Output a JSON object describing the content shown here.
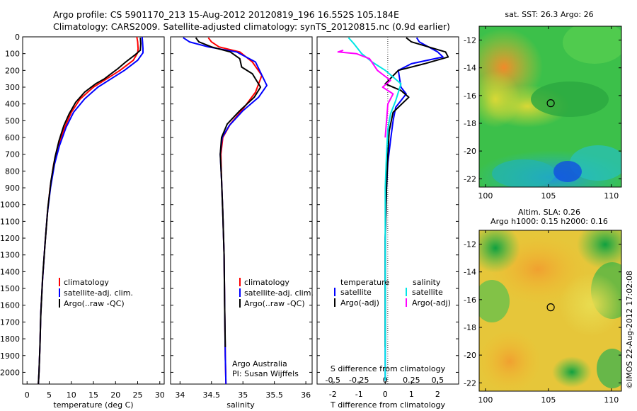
{
  "header": {
    "line1": "Argo profile: CS 5901170_213 15-Aug-2012 20120819_196 16.552S 105.184E",
    "line2": "Climatology: CARS2009. Satellite-adjusted climatology: synTS_20120815.nc (0.9d earlier)"
  },
  "colors": {
    "climatology": "#ff0000",
    "satellite": "#0000ff",
    "argo": "#000000",
    "sal_satellite": "#00e5e5",
    "sal_argo": "#ff00ff"
  },
  "chart_data": [
    {
      "type": "line",
      "name": "temperature",
      "xlabel": "temperature (deg C)",
      "ylabel": "",
      "xlim": [
        -1,
        31
      ],
      "ylim": [
        2070,
        0
      ],
      "xticks": [
        0,
        5,
        10,
        15,
        20,
        25,
        30
      ],
      "xtick_labels": [
        "0",
        "5",
        "10",
        "15",
        "20",
        "25",
        "30"
      ],
      "yticks": [
        0,
        100,
        200,
        300,
        400,
        500,
        600,
        700,
        800,
        900,
        1000,
        1100,
        1200,
        1300,
        1400,
        1500,
        1600,
        1700,
        1800,
        1900,
        2000
      ],
      "ytick_labels": [
        "0",
        "100",
        "200",
        "300",
        "400",
        "500",
        "600",
        "700",
        "800",
        "900",
        "1000",
        "1100",
        "1200",
        "1300",
        "1400",
        "1500",
        "1600",
        "1700",
        "1800",
        "1900",
        "2000"
      ],
      "legend": [
        "climatology",
        "satellite-adj. clim.",
        "Argo(..raw -QC)"
      ],
      "series": [
        {
          "name": "climatology",
          "color": "#ff0000",
          "x": [
            24.8,
            25,
            25.1,
            25,
            24,
            21,
            18,
            15,
            12,
            10,
            8.5,
            7,
            6,
            5.2,
            4.6,
            4,
            3.5,
            3.1,
            2.9,
            2.7,
            2.55
          ],
          "y": [
            0,
            30,
            70,
            95,
            140,
            200,
            250,
            300,
            370,
            450,
            540,
            650,
            760,
            900,
            1050,
            1250,
            1450,
            1650,
            1850,
            2000,
            2070
          ]
        },
        {
          "name": "satellite-adj. clim.",
          "color": "#0000ff",
          "x": [
            26,
            26.1,
            26.2,
            26.2,
            25,
            22,
            19,
            16,
            13,
            10.5,
            8.8,
            7.3,
            6.2,
            5.3,
            4.6,
            4,
            3.5,
            3.1,
            2.9,
            2.7,
            2.55
          ],
          "y": [
            0,
            30,
            70,
            95,
            140,
            200,
            250,
            300,
            370,
            450,
            540,
            650,
            760,
            900,
            1050,
            1250,
            1450,
            1650,
            1850,
            2000,
            2070
          ]
        },
        {
          "name": "Argo(..raw -QC)",
          "color": "#000000",
          "x": [
            25.6,
            25.7,
            25.6,
            24.5,
            22.3,
            20.5,
            19.5,
            17.5,
            15.5,
            13,
            11,
            9.5,
            8.3,
            7.2,
            6.3,
            5.4,
            4.7,
            4.1,
            3.5,
            3.1,
            2.9,
            2.7,
            2.55
          ],
          "y": [
            5,
            40,
            80,
            105,
            150,
            190,
            210,
            250,
            280,
            330,
            390,
            460,
            530,
            620,
            720,
            860,
            1020,
            1220,
            1440,
            1660,
            1850,
            2000,
            2070
          ]
        }
      ],
      "annotations": []
    },
    {
      "type": "line",
      "name": "salinity",
      "xlabel": "salinity",
      "ylabel": "",
      "xlim": [
        33.85,
        36.1
      ],
      "ylim": [
        2070,
        0
      ],
      "xticks": [
        34,
        34.5,
        35,
        35.5,
        36
      ],
      "xtick_labels": [
        "34",
        "34.5",
        "35",
        "35.5",
        "36"
      ],
      "legend": [
        "climatology",
        "satellite-adj. clim.",
        "Argo(..raw -QC)"
      ],
      "series": [
        {
          "name": "climatology",
          "color": "#ff0000",
          "x": [
            34.45,
            34.5,
            34.62,
            34.95,
            35.15,
            35.3,
            35.2,
            35.0,
            34.8,
            34.68,
            34.65,
            34.66,
            34.68,
            34.7,
            34.71,
            34.72,
            34.73
          ],
          "y": [
            5,
            30,
            60,
            90,
            150,
            230,
            330,
            430,
            520,
            600,
            700,
            850,
            1050,
            1300,
            1600,
            1900,
            2070
          ]
        },
        {
          "name": "satellite-adj. clim.",
          "color": "#0000ff",
          "x": [
            34.05,
            34.15,
            34.45,
            34.9,
            35.2,
            35.38,
            35.25,
            35.0,
            34.78,
            34.67,
            34.64,
            34.66,
            34.68,
            34.7,
            34.71,
            34.72,
            34.73
          ],
          "y": [
            5,
            30,
            60,
            90,
            150,
            290,
            360,
            440,
            530,
            600,
            700,
            850,
            1050,
            1300,
            1600,
            1900,
            2070
          ]
        },
        {
          "name": "Argo(..raw -QC)",
          "color": "#000000",
          "x": [
            34.25,
            34.3,
            34.5,
            34.8,
            34.95,
            34.98,
            35.15,
            35.28,
            35.18,
            34.95,
            34.75,
            34.66,
            34.64,
            34.66,
            34.68,
            34.7,
            34.71,
            34.72
          ],
          "y": [
            5,
            30,
            60,
            90,
            130,
            180,
            220,
            300,
            360,
            440,
            520,
            600,
            700,
            850,
            1050,
            1300,
            1600,
            1850
          ]
        }
      ],
      "annotations": [
        "Argo Australia",
        "PI: Susan Wijffels"
      ]
    },
    {
      "type": "line",
      "name": "difference",
      "xlabel": "T difference from climatology",
      "xlabel_top": "S difference from climatology",
      "xlim": [
        -2.6,
        2.8
      ],
      "ylim": [
        2070,
        0
      ],
      "xticks": [
        -2,
        -1,
        0,
        1,
        2
      ],
      "xtick_labels": [
        "-2",
        "-1",
        "0",
        "1",
        "2"
      ],
      "xticks_s": [
        -0.5,
        -0.25,
        0,
        0.25,
        0.5
      ],
      "xtick_labels_s": [
        "-0.5",
        "-0.25",
        "0",
        "0.25",
        "0.5"
      ],
      "legend_temperature_title": "temperature",
      "legend_salinity_title": "salinity",
      "legend": [
        "satellite",
        "Argo(-adj)",
        "satellite",
        "Argo(-adj)"
      ],
      "series": [
        {
          "name": "T satellite",
          "color": "#0000ff",
          "x": [
            1.2,
            1.3,
            2.0,
            2.2,
            1.0,
            0.5,
            0.6,
            0.8,
            0.4,
            0.3,
            0.2,
            0.1,
            0.05,
            0.0,
            0.0,
            0.0
          ],
          "y": [
            5,
            30,
            90,
            120,
            160,
            200,
            300,
            340,
            420,
            500,
            620,
            750,
            900,
            1200,
            1600,
            2050
          ]
        },
        {
          "name": "T Argo(-adj)",
          "color": "#000000",
          "x": [
            0.8,
            1.0,
            2.3,
            2.4,
            1.5,
            0.5,
            0.0,
            0.6,
            0.9,
            0.3,
            0.15,
            0.1,
            0.05,
            0.0,
            0.0,
            0.0
          ],
          "y": [
            5,
            30,
            90,
            120,
            160,
            200,
            280,
            320,
            360,
            450,
            560,
            700,
            900,
            1200,
            1600,
            1850
          ]
        },
        {
          "name": "S satellite",
          "color": "#00e5e5",
          "x": [
            -1.4,
            -1.2,
            -0.9,
            -0.5,
            0.0,
            0.6,
            0.4,
            0.2,
            0.1,
            0.05,
            0.0,
            0.0,
            0.0,
            0.0
          ],
          "y": [
            5,
            40,
            100,
            150,
            200,
            280,
            380,
            460,
            550,
            700,
            900,
            1200,
            1600,
            2050
          ]
        },
        {
          "name": "S Argo(-adj)",
          "color": "#ff00ff",
          "x": [
            -1.6,
            -1.8,
            -1.1,
            -0.6,
            -0.3,
            0.2,
            -0.1,
            0.3,
            0.1,
            0.05,
            0.0
          ],
          "y": [
            80,
            90,
            100,
            130,
            200,
            260,
            300,
            340,
            400,
            500,
            600
          ]
        }
      ],
      "annotations": []
    },
    {
      "type": "heatmap",
      "name": "sst-map",
      "title": "sat. SST: 26.3 Argo: 26",
      "xlim": [
        99.5,
        110.8
      ],
      "ylim": [
        -22.6,
        -11.0
      ],
      "xticks": [
        100,
        105,
        110
      ],
      "xtick_labels": [
        "100",
        "105",
        "110"
      ],
      "yticks": [
        -12,
        -14,
        -16,
        -18,
        -20,
        -22
      ],
      "ytick_labels": [
        "-12",
        "-14",
        "-16",
        "-18",
        "-20",
        "-22"
      ],
      "marker": {
        "lon": 105.184,
        "lat": -16.552
      }
    },
    {
      "type": "heatmap",
      "name": "sla-map",
      "title": "Altim. SLA: 0.26",
      "subtitle": "Argo h1000: 0.15 h2000: 0.16",
      "xlim": [
        99.5,
        110.8
      ],
      "ylim": [
        -22.6,
        -11.0
      ],
      "xticks": [
        100,
        105,
        110
      ],
      "xtick_labels": [
        "100",
        "105",
        "110"
      ],
      "yticks": [
        -12,
        -14,
        -16,
        -18,
        -20,
        -22
      ],
      "ytick_labels": [
        "-12",
        "-14",
        "-16",
        "-18",
        "-20",
        "-22"
      ],
      "marker": {
        "lon": 105.184,
        "lat": -16.552
      }
    }
  ],
  "credit": "©IMOS 22-Aug-2012 17:02:08"
}
